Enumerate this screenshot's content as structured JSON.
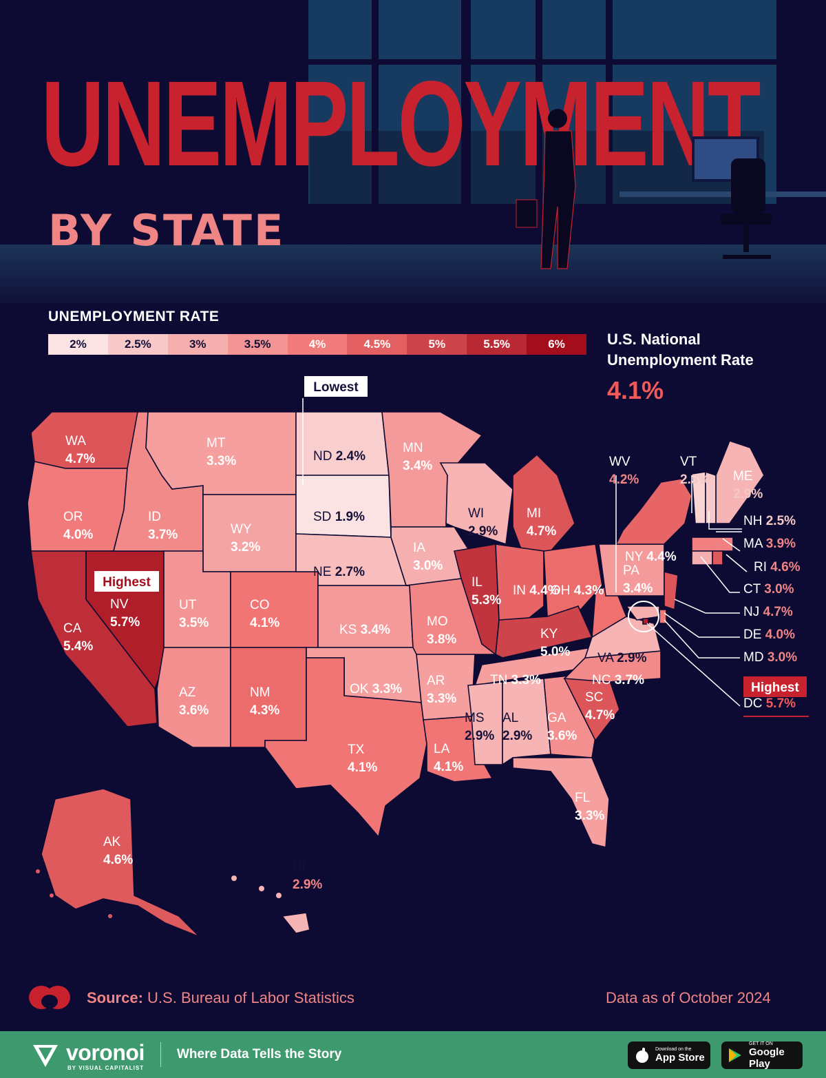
{
  "title": "UNEMPLOYMENT",
  "subtitle": "BY STATE",
  "legend": {
    "title": "UNEMPLOYMENT RATE",
    "ticks": [
      "2%",
      "2.5%",
      "3%",
      "3.5%",
      "4%",
      "4.5%",
      "5%",
      "5.5%",
      "6%"
    ]
  },
  "national": {
    "title": "U.S. National Unemployment Rate",
    "value": "4.1%"
  },
  "callouts": {
    "lowest": "Lowest",
    "highest": "Highest"
  },
  "colors": {
    "background": "#0d0b33",
    "title": "#c8222f",
    "subtitle": "#f08586",
    "accent": "#f25a5a",
    "scale_low": "#fbe3e3",
    "scale_high": "#a30d1c",
    "footer": "#3e9a6e"
  },
  "states": [
    {
      "abbr": "WA",
      "rate": "4.7%"
    },
    {
      "abbr": "OR",
      "rate": "4.0%"
    },
    {
      "abbr": "CA",
      "rate": "5.4%"
    },
    {
      "abbr": "NV",
      "rate": "5.7%"
    },
    {
      "abbr": "ID",
      "rate": "3.7%"
    },
    {
      "abbr": "MT",
      "rate": "3.3%"
    },
    {
      "abbr": "WY",
      "rate": "3.2%"
    },
    {
      "abbr": "UT",
      "rate": "3.5%"
    },
    {
      "abbr": "AZ",
      "rate": "3.6%"
    },
    {
      "abbr": "CO",
      "rate": "4.1%"
    },
    {
      "abbr": "NM",
      "rate": "4.3%"
    },
    {
      "abbr": "ND",
      "rate": "2.4%"
    },
    {
      "abbr": "SD",
      "rate": "1.9%"
    },
    {
      "abbr": "NE",
      "rate": "2.7%"
    },
    {
      "abbr": "KS",
      "rate": "3.4%"
    },
    {
      "abbr": "OK",
      "rate": "3.3%"
    },
    {
      "abbr": "TX",
      "rate": "4.1%"
    },
    {
      "abbr": "MN",
      "rate": "3.4%"
    },
    {
      "abbr": "IA",
      "rate": "3.0%"
    },
    {
      "abbr": "MO",
      "rate": "3.8%"
    },
    {
      "abbr": "AR",
      "rate": "3.3%"
    },
    {
      "abbr": "LA",
      "rate": "4.1%"
    },
    {
      "abbr": "WI",
      "rate": "2.9%"
    },
    {
      "abbr": "IL",
      "rate": "5.3%"
    },
    {
      "abbr": "MI",
      "rate": "4.7%"
    },
    {
      "abbr": "IN",
      "rate": "4.4%"
    },
    {
      "abbr": "OH",
      "rate": "4.3%"
    },
    {
      "abbr": "KY",
      "rate": "5.0%"
    },
    {
      "abbr": "TN",
      "rate": "3.3%"
    },
    {
      "abbr": "MS",
      "rate": "2.9%"
    },
    {
      "abbr": "AL",
      "rate": "2.9%"
    },
    {
      "abbr": "GA",
      "rate": "3.6%"
    },
    {
      "abbr": "FL",
      "rate": "3.3%"
    },
    {
      "abbr": "SC",
      "rate": "4.7%"
    },
    {
      "abbr": "NC",
      "rate": "3.7%"
    },
    {
      "abbr": "VA",
      "rate": "2.9%"
    },
    {
      "abbr": "WV",
      "rate": "4.2%"
    },
    {
      "abbr": "PA",
      "rate": "3.4%"
    },
    {
      "abbr": "NY",
      "rate": "4.4%"
    },
    {
      "abbr": "VT",
      "rate": "2.3%"
    },
    {
      "abbr": "ME",
      "rate": "2.9%"
    },
    {
      "abbr": "NH",
      "rate": "2.5%"
    },
    {
      "abbr": "MA",
      "rate": "3.9%"
    },
    {
      "abbr": "RI",
      "rate": "4.6%"
    },
    {
      "abbr": "CT",
      "rate": "3.0%"
    },
    {
      "abbr": "NJ",
      "rate": "4.7%"
    },
    {
      "abbr": "DE",
      "rate": "4.0%"
    },
    {
      "abbr": "MD",
      "rate": "3.0%"
    },
    {
      "abbr": "DC",
      "rate": "5.7%"
    },
    {
      "abbr": "AK",
      "rate": "4.6%"
    },
    {
      "abbr": "HI",
      "rate": "2.9%"
    }
  ],
  "source": {
    "label": "Source:",
    "text": "U.S. Bureau of Labor Statistics"
  },
  "as_of": "Data as of October 2024",
  "footer": {
    "brand": "voronoi",
    "brand_sub": "BY VISUAL CAPITALIST",
    "tagline": "Where Data Tells the Story",
    "app_store": {
      "small": "Download on the",
      "big": "App Store"
    },
    "google_play": {
      "small": "GET IT ON",
      "big": "Google Play"
    }
  }
}
